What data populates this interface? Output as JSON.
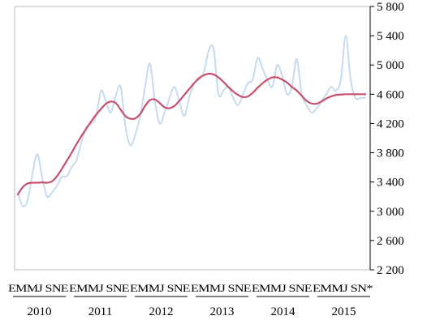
{
  "chart_data": {
    "type": "line",
    "title": "",
    "xlabel": "",
    "ylabel": "",
    "ylim": [
      2200,
      5800
    ],
    "yticks": [
      2200,
      2600,
      3000,
      3400,
      3800,
      4200,
      4600,
      5000,
      5400,
      5800
    ],
    "ytick_labels": [
      "2 200",
      "2 600",
      "3 000",
      "3 400",
      "3 800",
      "4 200",
      "4 600",
      "5 000",
      "5 400",
      "5 800"
    ],
    "y_axis_side": "right",
    "grid": false,
    "x_start": "2010-01",
    "months_shown": 72,
    "month_groups": [
      {
        "year": "2010",
        "months": "EMMJ SNE"
      },
      {
        "year": "2011",
        "months": "EMMJ SNE"
      },
      {
        "year": "2012",
        "months": "EMMJ SNE"
      },
      {
        "year": "2013",
        "months": "EMMJ SNE"
      },
      {
        "year": "2014",
        "months": "EMMJ SNE"
      },
      {
        "year": "2015",
        "months": "EMMJ SN*"
      }
    ],
    "series": [
      {
        "name": "",
        "color": "#c6dbef",
        "values": [
          3250,
          3070,
          3150,
          3520,
          3780,
          3450,
          3200,
          3260,
          3350,
          3470,
          3480,
          3600,
          3700,
          3950,
          4150,
          4200,
          4300,
          4650,
          4500,
          4350,
          4580,
          4700,
          4150,
          3900,
          4050,
          4300,
          4700,
          5020,
          4500,
          4200,
          4350,
          4550,
          4700,
          4500,
          4300,
          4550,
          4750,
          4800,
          4900,
          5200,
          5220,
          4600,
          4650,
          4700,
          4550,
          4450,
          4600,
          4750,
          4800,
          5100,
          4950,
          4800,
          4700,
          5000,
          4850,
          4600,
          4700,
          5080,
          4600,
          4450,
          4350,
          4400,
          4500,
          4600,
          4700,
          4650,
          4800,
          5400,
          4800,
          4550,
          4550,
          4550
        ]
      },
      {
        "name": "",
        "color": "#c8506e",
        "values": [
          3230,
          3330,
          3380,
          3390,
          3390,
          3395,
          3390,
          3410,
          3480,
          3580,
          3690,
          3800,
          3920,
          4030,
          4130,
          4230,
          4320,
          4400,
          4470,
          4500,
          4480,
          4390,
          4300,
          4265,
          4270,
          4330,
          4440,
          4520,
          4530,
          4480,
          4420,
          4410,
          4440,
          4510,
          4590,
          4670,
          4750,
          4820,
          4860,
          4880,
          4870,
          4830,
          4770,
          4700,
          4640,
          4590,
          4560,
          4570,
          4620,
          4690,
          4750,
          4800,
          4830,
          4830,
          4800,
          4760,
          4700,
          4650,
          4580,
          4510,
          4475,
          4470,
          4500,
          4540,
          4570,
          4590,
          4595,
          4600,
          4600,
          4600,
          4600,
          4600
        ]
      }
    ]
  }
}
